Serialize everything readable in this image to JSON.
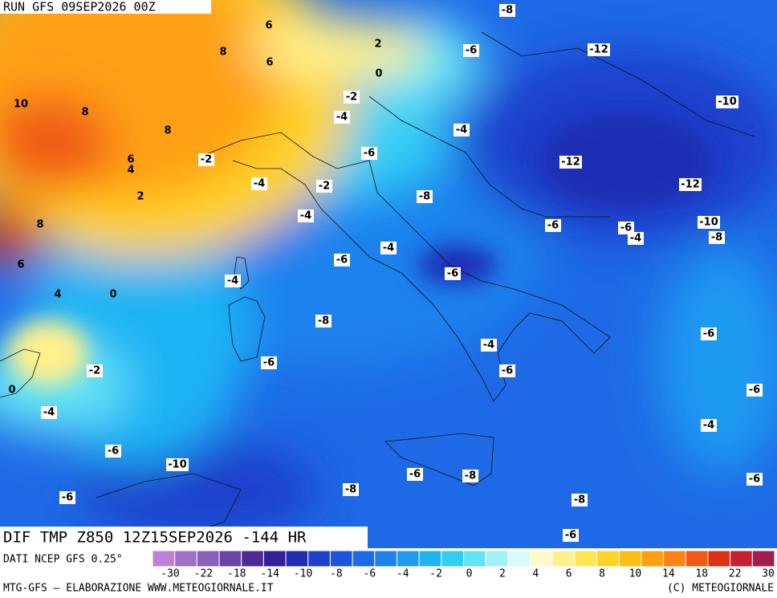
{
  "header": {
    "run": "RUN GFS 09SEP2026 00Z"
  },
  "map": {
    "contour_labels": [
      "-8",
      "6",
      "-6",
      "-12",
      "2",
      "8",
      "6",
      "0",
      "10",
      "-10",
      "-2",
      "8",
      "-4",
      "8",
      "-4",
      "6",
      "4",
      "-6",
      "-2",
      "-12",
      "-4",
      "-2",
      "-12",
      "-8",
      "2",
      "-4",
      "-10",
      "-6",
      "-6",
      "8",
      "-4",
      "-8",
      "-4",
      "-6",
      "6",
      "-6",
      "-4",
      "4",
      "0",
      "-8",
      "-6",
      "-4",
      "-6",
      "-2",
      "-6",
      "0",
      "-6",
      "-4",
      "-4",
      "-6",
      "-10",
      "-6",
      "-8",
      "-6",
      "-8",
      "-6",
      "-8",
      "-6"
    ]
  },
  "caption": {
    "title": "DIF TMP Z850 12Z15SEP2026 -144 HR",
    "source": "DATI NCEP GFS 0.25°"
  },
  "legend": {
    "colors": [
      "#c080d8",
      "#a070c8",
      "#8860b8",
      "#6a44a6",
      "#4e2c94",
      "#33209a",
      "#1e2db4",
      "#1e40cc",
      "#1e55dc",
      "#1e6ae6",
      "#1e82ee",
      "#1e9af2",
      "#1eb4f4",
      "#32cdf5",
      "#64e2f5",
      "#a0f0f5",
      "#d8fafa",
      "#fffac8",
      "#fff08c",
      "#ffe650",
      "#ffd228",
      "#ffbe14",
      "#ffa014",
      "#ff8214",
      "#f05a14",
      "#dc3214",
      "#c81e32",
      "#a01e50"
    ],
    "labels": [
      "-30",
      "-22",
      "-18",
      "-14",
      "-10",
      "-8",
      "-6",
      "-4",
      "-2",
      "0",
      "2",
      "4",
      "6",
      "8",
      "10",
      "14",
      "18",
      "22",
      "30"
    ]
  },
  "footer": {
    "left": "MTG-GFS — ELABORAZIONE WWW.METEOGIORNALE.IT",
    "right": "(C) METEOGIORNALE"
  }
}
